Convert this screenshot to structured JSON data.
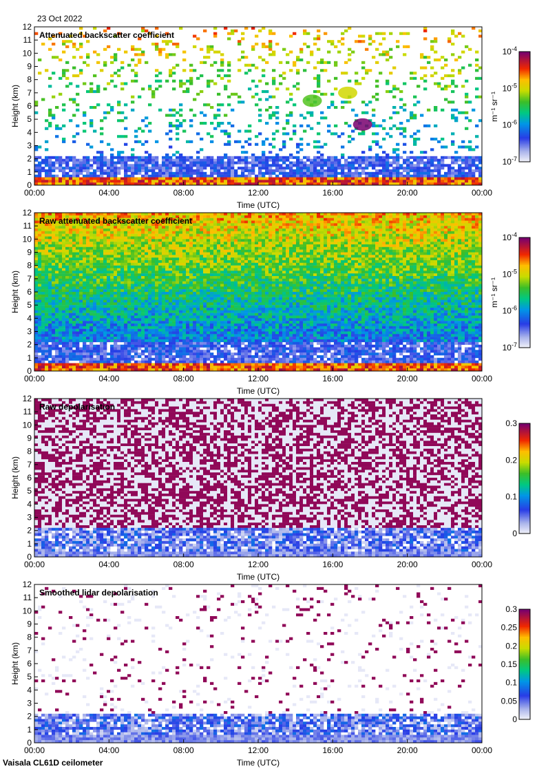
{
  "header": {
    "date": "23 Oct 2022"
  },
  "footer": {
    "instrument": "Vaisala CL61D ceilometer"
  },
  "chart_data": [
    {
      "type": "heatmap",
      "title": "Attenuated backscatter coefficient",
      "xlabel": "Time (UTC)",
      "ylabel": "Height (km)",
      "xticks": [
        "00:00",
        "04:00",
        "08:00",
        "12:00",
        "16:00",
        "20:00",
        "00:00"
      ],
      "xlim_hours": [
        0,
        24
      ],
      "ylim": [
        0,
        12
      ],
      "yticks": [
        0,
        1,
        2,
        3,
        4,
        5,
        6,
        7,
        8,
        9,
        10,
        11,
        12
      ],
      "colorbar": {
        "scale": "log",
        "range": [
          1e-07,
          0.0001
        ],
        "unit": "m-1 sr-1",
        "ticks": [
          "10-7",
          "10-6",
          "10-5",
          "10-4"
        ]
      },
      "features": {
        "boundary_layer_top_km": 0.6,
        "noise_density": 0.15,
        "clouds": [
          {
            "t_hours": 16.8,
            "z_km": 7.0,
            "value": "1e-5"
          },
          {
            "t_hours": 14.9,
            "z_km": 6.4,
            "value": "5e-6"
          },
          {
            "t_hours": 17.6,
            "z_km": 4.6,
            "value": "1e-4"
          }
        ]
      }
    },
    {
      "type": "heatmap",
      "title": "Raw attenuated backscatter coefficient",
      "xlabel": "Time (UTC)",
      "ylabel": "Height (km)",
      "xticks": [
        "00:00",
        "04:00",
        "08:00",
        "12:00",
        "16:00",
        "20:00",
        "00:00"
      ],
      "xlim_hours": [
        0,
        24
      ],
      "ylim": [
        0,
        12
      ],
      "yticks": [
        0,
        1,
        2,
        3,
        4,
        5,
        6,
        7,
        8,
        9,
        10,
        11,
        12
      ],
      "colorbar": {
        "scale": "log",
        "range": [
          1e-07,
          0.0001
        ],
        "unit": "m-1 sr-1",
        "ticks": [
          "10-7",
          "10-6",
          "10-5",
          "10-4"
        ]
      },
      "features": {
        "boundary_layer_top_km": 0.6,
        "noise_density": 1.0
      }
    },
    {
      "type": "heatmap",
      "title": "Raw depolarisation",
      "xlabel": "Time (UTC)",
      "ylabel": "Height (km)",
      "xticks": [
        "00:00",
        "04:00",
        "08:00",
        "12:00",
        "16:00",
        "20:00",
        "00:00"
      ],
      "xlim_hours": [
        0,
        24
      ],
      "ylim": [
        0,
        12
      ],
      "yticks": [
        0,
        1,
        2,
        3,
        4,
        5,
        6,
        7,
        8,
        9,
        10,
        11,
        12
      ],
      "colorbar": {
        "scale": "linear",
        "range": [
          0,
          0.3
        ],
        "unit": "",
        "ticks": [
          "0",
          "0.1",
          "0.2",
          "0.3"
        ]
      },
      "features": {
        "boundary_layer_top_km": 0.5,
        "noise_density": 1.0
      }
    },
    {
      "type": "heatmap",
      "title": "Smoothed lidar depolarisation",
      "xlabel": "Time (UTC)",
      "ylabel": "Height (km)",
      "xticks": [
        "00:00",
        "04:00",
        "08:00",
        "12:00",
        "16:00",
        "20:00",
        "00:00"
      ],
      "xlim_hours": [
        0,
        24
      ],
      "ylim": [
        0,
        12
      ],
      "yticks": [
        0,
        1,
        2,
        3,
        4,
        5,
        6,
        7,
        8,
        9,
        10,
        11,
        12
      ],
      "colorbar": {
        "scale": "linear",
        "range": [
          0,
          0.3
        ],
        "unit": "",
        "ticks": [
          "0",
          "0.05",
          "0.1",
          "0.15",
          "0.2",
          "0.25",
          "0.3"
        ]
      },
      "features": {
        "boundary_layer_top_km": 0.7,
        "noise_density": 0.08
      }
    }
  ]
}
